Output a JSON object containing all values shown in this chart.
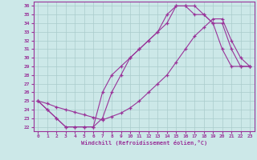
{
  "xlabel": "Windchill (Refroidissement éolien,°C)",
  "background_color": "#cce8e8",
  "grid_color": "#aacccc",
  "line_color": "#993399",
  "x_ticks": [
    0,
    1,
    2,
    3,
    4,
    5,
    6,
    7,
    8,
    9,
    10,
    11,
    12,
    13,
    14,
    15,
    16,
    17,
    18,
    19,
    20,
    21,
    22,
    23
  ],
  "y_ticks": [
    22,
    23,
    24,
    25,
    26,
    27,
    28,
    29,
    30,
    31,
    32,
    33,
    34,
    35,
    36
  ],
  "xlim": [
    -0.5,
    23.5
  ],
  "ylim": [
    21.5,
    36.5
  ],
  "line1_x": [
    0,
    1,
    2,
    3,
    4,
    5,
    6,
    7,
    8,
    9,
    10,
    11,
    12,
    13,
    14,
    15,
    16,
    17,
    18,
    19,
    20,
    21,
    22,
    23
  ],
  "line1_y": [
    25,
    24,
    23,
    22,
    22,
    22,
    22,
    23,
    26,
    28,
    30,
    31,
    32,
    33,
    34,
    36,
    36,
    36,
    35,
    34,
    31,
    29,
    29,
    29
  ],
  "line2_x": [
    0,
    1,
    2,
    3,
    4,
    5,
    6,
    7,
    8,
    9,
    10,
    11,
    12,
    13,
    14,
    15,
    16,
    17,
    18,
    19,
    20,
    21,
    22,
    23
  ],
  "line2_y": [
    25,
    24,
    23,
    22,
    22,
    22,
    22,
    26,
    28,
    29,
    30,
    31,
    32,
    33,
    35,
    36,
    36,
    35,
    35,
    34,
    34,
    31,
    29,
    29
  ],
  "line3_x": [
    0,
    1,
    2,
    3,
    4,
    5,
    6,
    7,
    8,
    9,
    10,
    11,
    12,
    13,
    14,
    15,
    16,
    17,
    18,
    19,
    20,
    21,
    22,
    23
  ],
  "line3_y": [
    25,
    24.7,
    24.3,
    24,
    23.7,
    23.4,
    23.1,
    22.8,
    23.2,
    23.6,
    24.2,
    25,
    26,
    27,
    28,
    29.5,
    31,
    32.5,
    33.5,
    34.5,
    34.5,
    32,
    30,
    29
  ]
}
